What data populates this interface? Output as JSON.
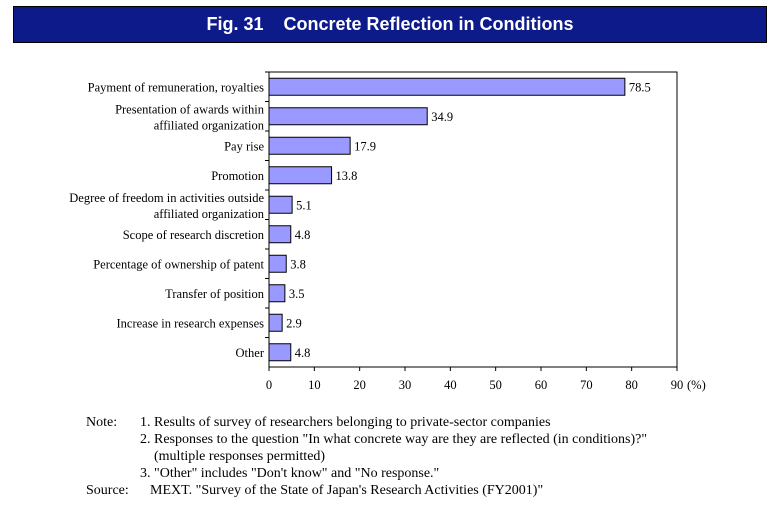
{
  "figure_title": "Fig. 31    Concrete Reflection in Conditions",
  "chart_data": {
    "type": "bar",
    "orientation": "horizontal",
    "categories": [
      [
        "Payment of remuneration, royalties"
      ],
      [
        "Presentation of awards within",
        "affiliated organization"
      ],
      [
        "Pay rise"
      ],
      [
        "Promotion"
      ],
      [
        "Degree of freedom in activities outside",
        "affiliated organization"
      ],
      [
        "Scope of research discretion"
      ],
      [
        "Percentage of ownership of patent"
      ],
      [
        "Transfer of position"
      ],
      [
        "Increase in research expenses"
      ],
      [
        "Other"
      ]
    ],
    "values": [
      78.5,
      34.9,
      17.9,
      13.8,
      5.1,
      4.8,
      3.8,
      3.5,
      2.9,
      4.8
    ],
    "value_labels": [
      "78.5",
      "34.9",
      "17.9",
      "13.8",
      "5.1",
      "4.8",
      "3.8",
      "3.5",
      "2.9",
      "4.8"
    ],
    "xlim": [
      0,
      90
    ],
    "xticks": [
      "0",
      "10",
      "20",
      "30",
      "40",
      "50",
      "60",
      "70",
      "80",
      "90"
    ],
    "x_unit": "(%)",
    "bar_color": "#9999ff",
    "grid": false
  },
  "notes": {
    "note_key": "Note:",
    "lines": [
      "1. Results of survey of researchers belonging to private-sector companies",
      "2. Responses to the question \"In what concrete way are they are reflected (in conditions)?\"",
      "    (multiple responses permitted)",
      "3. \"Other\" includes \"Don't know\" and \"No response.\""
    ],
    "source_key": "Source:",
    "source": "MEXT. \"Survey of the State of Japan's Research Activities (FY2001)\""
  },
  "colors": {
    "title_bg": "#0d1a8a",
    "title_text": "#ffffff"
  }
}
